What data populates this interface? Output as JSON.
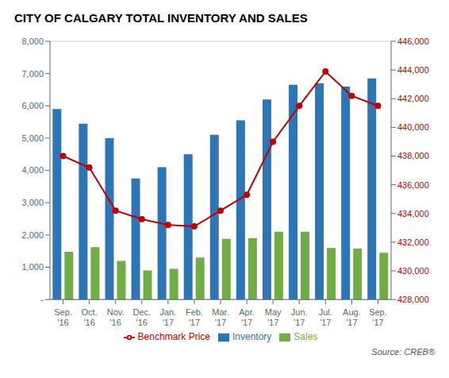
{
  "chart_data": {
    "type": "bar",
    "title": "CITY OF CALGARY TOTAL INVENTORY AND SALES",
    "categories": [
      "Sep.\n'16",
      "Oct.\n'16",
      "Nov.\n'16",
      "Dec.\n'16",
      "Jan.\n'17",
      "Feb.\n'17",
      "Mar.\n'17",
      "Apr.\n'17",
      "May\n'17",
      "Jun.\n'17",
      "Jul.\n'17",
      "Aug.\n'17",
      "Sep.\n'17"
    ],
    "series": [
      {
        "name": "Inventory",
        "type": "bar",
        "color": "#2e75b6",
        "values": [
          5900,
          5450,
          5000,
          3750,
          4100,
          4500,
          5100,
          5550,
          6200,
          6650,
          6700,
          6600,
          6850
        ]
      },
      {
        "name": "Sales",
        "type": "bar",
        "color": "#70ad47",
        "values": [
          1480,
          1620,
          1200,
          900,
          950,
          1300,
          1880,
          1900,
          2100,
          2100,
          1600,
          1580,
          1450
        ]
      },
      {
        "name": "Benchmark Price",
        "type": "line",
        "axis": "y2",
        "color": "#c00000",
        "marker": "circle",
        "values": [
          438000,
          437200,
          434200,
          433600,
          433200,
          433100,
          434200,
          435300,
          439000,
          441500,
          443900,
          442200,
          441500
        ]
      }
    ],
    "ylim": [
      0,
      8000
    ],
    "yticks": [
      {
        "value": 0,
        "label": "-"
      },
      {
        "value": 1000,
        "label": "1,000"
      },
      {
        "value": 2000,
        "label": "2,000"
      },
      {
        "value": 3000,
        "label": "3,000"
      },
      {
        "value": 4000,
        "label": "4,000"
      },
      {
        "value": 5000,
        "label": "5,000"
      },
      {
        "value": 6000,
        "label": "6,000"
      },
      {
        "value": 7000,
        "label": "7,000"
      },
      {
        "value": 8000,
        "label": "8,000"
      }
    ],
    "y2lim": [
      428000,
      446000
    ],
    "y2ticks": [
      {
        "value": 428000,
        "label": "428,000"
      },
      {
        "value": 430000,
        "label": "430,000"
      },
      {
        "value": 432000,
        "label": "432,000"
      },
      {
        "value": 434000,
        "label": "434,000"
      },
      {
        "value": 436000,
        "label": "436,000"
      },
      {
        "value": 438000,
        "label": "438,000"
      },
      {
        "value": 440000,
        "label": "440,000"
      },
      {
        "value": 442000,
        "label": "442,000"
      },
      {
        "value": 444000,
        "label": "444,000"
      },
      {
        "value": 446000,
        "label": "446,000"
      }
    ],
    "grid": true,
    "legend": "bottom",
    "annotations": [
      "Source: CREB®"
    ]
  }
}
